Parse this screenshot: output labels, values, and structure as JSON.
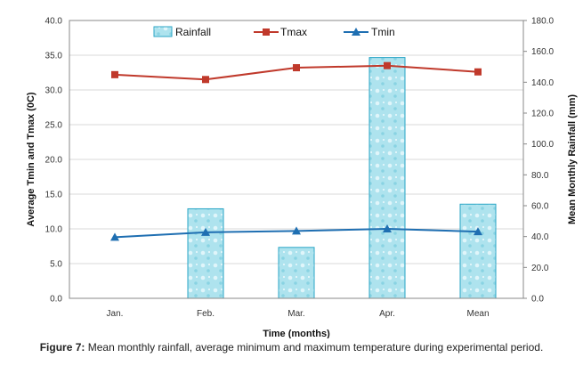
{
  "caption": {
    "label": "Figure 7:",
    "text": "Mean monthly rainfall, average minimum and maximum temperature during experimental period."
  },
  "colors": {
    "rain_fill": "#aee3ee",
    "rain_stroke": "#2aa6c6",
    "tmax": "#c0392b",
    "tmin": "#1f6fb2",
    "grid": "#d9d9d9",
    "axis": "#888888"
  },
  "chart_data": {
    "type": "bar",
    "grid": true,
    "legend_position": "top-center",
    "categories": [
      "Jan.",
      "Feb.",
      "Mar.",
      "Apr.",
      "Mean"
    ],
    "xlabel": "Time (months)",
    "ylabel_left": "Average Tmin and Tmax (0C)",
    "ylabel_right": "Mean Monthly Rainfall (mm)",
    "ylim_left": [
      0,
      40
    ],
    "ylim_right": [
      0,
      180
    ],
    "yticks_left": [
      "0.0",
      "5.0",
      "10.0",
      "15.0",
      "20.0",
      "25.0",
      "30.0",
      "35.0",
      "40.0"
    ],
    "yticks_right": [
      "0.0",
      "20.0",
      "40.0",
      "60.0",
      "80.0",
      "100.0",
      "120.0",
      "140.0",
      "160.0",
      "180.0"
    ],
    "series": [
      {
        "name": "Rainfall",
        "type": "bar",
        "axis": "right",
        "values": [
          0,
          58,
          33,
          156,
          61
        ]
      },
      {
        "name": "Tmax",
        "type": "line",
        "axis": "left",
        "marker": "square",
        "values": [
          32.2,
          31.5,
          33.2,
          33.5,
          32.6
        ]
      },
      {
        "name": "Tmin",
        "type": "line",
        "axis": "left",
        "marker": "triangle",
        "values": [
          8.8,
          9.5,
          9.7,
          10.0,
          9.6
        ]
      }
    ]
  }
}
